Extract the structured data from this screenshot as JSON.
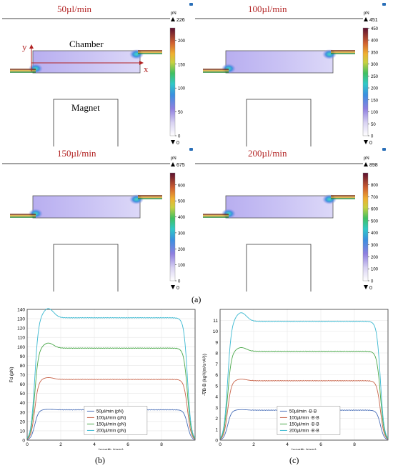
{
  "sim_panels": [
    {
      "title": "50µl/min",
      "unit": "pN",
      "max_label": "226",
      "min_label": "0",
      "ticks": [
        0,
        50,
        100,
        150,
        200
      ],
      "max": 226
    },
    {
      "title": "100µl/min",
      "unit": "pN",
      "max_label": "451",
      "min_label": "0",
      "ticks": [
        0,
        50,
        100,
        150,
        200,
        250,
        300,
        350,
        400,
        450
      ],
      "max": 451
    },
    {
      "title": "150µl/min",
      "unit": "pN",
      "max_label": "675",
      "min_label": "0",
      "ticks": [
        0,
        100,
        200,
        300,
        400,
        500,
        600
      ],
      "max": 675
    },
    {
      "title": "200µl/min",
      "unit": "pN",
      "max_label": "898",
      "min_label": "0",
      "ticks": [
        0,
        100,
        200,
        300,
        400,
        500,
        600,
        700,
        800
      ],
      "max": 898
    }
  ],
  "annotations": {
    "chamber": "Chamber",
    "magnet": "Magnet",
    "x_axis": "x",
    "y_axis": "y"
  },
  "captions": {
    "a": "(a)",
    "b": "(b)",
    "c": "(c)"
  },
  "colors": {
    "title_red": "#b22222",
    "s50": "#4a6fb8",
    "s100": "#c8644a",
    "s150": "#4aa84a",
    "s200": "#3ab8d0"
  },
  "chart_data": [
    {
      "type": "line",
      "xlabel": "length (mm)",
      "ylabel": "Fd (pN)",
      "xlim": [
        0,
        10
      ],
      "ylim": [
        0,
        140
      ],
      "xticks": [
        0,
        2,
        4,
        6,
        8
      ],
      "yticks": [
        0,
        10,
        20,
        30,
        40,
        50,
        60,
        70,
        80,
        90,
        100,
        110,
        120,
        130,
        140
      ],
      "legend_position": "bottom-center",
      "grid": true,
      "series": [
        {
          "name": "50µl/min (pN)",
          "peak": 33,
          "plateau": 32.5
        },
        {
          "name": "100µl/min (pN)",
          "peak": 67,
          "plateau": 65
        },
        {
          "name": "150µl/min (pN)",
          "peak": 104,
          "plateau": 98.5
        },
        {
          "name": "200µl/min (pN)",
          "peak": 141,
          "plateau": 131
        }
      ]
    },
    {
      "type": "line",
      "xlabel": "length (mm)",
      "ylabel": "-∇B·B (kg²/(m²s⁴A²))",
      "xlim": [
        0,
        10
      ],
      "ylim": [
        0,
        12
      ],
      "xticks": [
        0,
        2,
        4,
        6,
        8
      ],
      "yticks": [
        0,
        1,
        2,
        3,
        4,
        5,
        6,
        7,
        8,
        9,
        10,
        11
      ],
      "legend_position": "bottom-center",
      "grid": true,
      "series": [
        {
          "name": "50µl/min ·B·B",
          "peak": 2.8,
          "plateau": 2.75
        },
        {
          "name": "100µl/min ·B·B",
          "peak": 5.6,
          "plateau": 5.45
        },
        {
          "name": "150µl/min ·B·B",
          "peak": 8.5,
          "plateau": 8.15
        },
        {
          "name": "200µl/min ·B·B",
          "peak": 11.7,
          "plateau": 10.9
        }
      ]
    }
  ]
}
